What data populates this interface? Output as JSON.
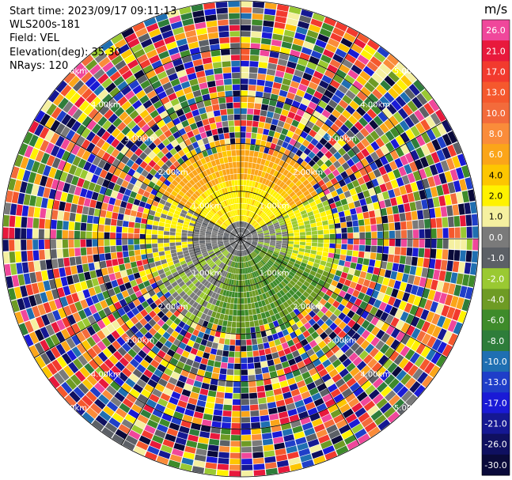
{
  "info": {
    "start_time": "Start time: 2023/09/17 09:11:13",
    "instrument": "WLS200s-181",
    "field": "Field: VEL",
    "elevation": "Elevation(deg): 35.30",
    "nrays": "NRays: 120"
  },
  "colorbar": {
    "unit": "m/s",
    "ticks": [
      "26.0",
      "21.0",
      "17.0",
      "13.0",
      "10.0",
      "8.0",
      "6.0",
      "4.0",
      "2.0",
      "1.0",
      "0.0",
      "-1.0",
      "-2.0",
      "-4.0",
      "-6.0",
      "-8.0",
      "-10.0",
      "-13.0",
      "-17.0",
      "-21.0",
      "-26.0",
      "-30.0"
    ],
    "colors": [
      "#f0479b",
      "#e8193c",
      "#f23a2e",
      "#f5582d",
      "#f36b3b",
      "#fa8c3a",
      "#fba519",
      "#fdc601",
      "#fff200",
      "#f5f0a0",
      "#7a7a7a",
      "#5c6066",
      "#9ac932",
      "#6e9b24",
      "#3e8b2a",
      "#2e7d3a",
      "#1f6fb2",
      "#1f3ec9",
      "#1a1ad6",
      "#151893",
      "#0f1060",
      "#0a0a3a"
    ]
  },
  "chart_data": {
    "type": "heatmap",
    "title": "",
    "field": "VEL",
    "units": "m/s",
    "elevation_deg": 35.3,
    "n_rays": 120,
    "range_rings_km": [
      1.0,
      2.0,
      3.0,
      4.0,
      5.0
    ],
    "range_ring_labels": [
      "1.00km",
      "2.00km",
      "3.00km",
      "4.00km",
      "5.00km"
    ],
    "max_range_km": 5.0,
    "azimuth_spokes_deg": [
      0,
      30,
      60,
      90,
      120,
      150,
      180,
      210,
      240,
      270,
      300,
      330
    ],
    "summary": "Coherent velocity field out to ~2.0 km (yellow/orange +2 to +6 m/s to the north, grey ~0 m/s near center and west, green -2 to -6 m/s to the south-east); beyond ~2.0 km returns are noise spanning the full -30 to +26 m/s scale.",
    "colorbar_range": [
      -30.0,
      26.0
    ]
  }
}
